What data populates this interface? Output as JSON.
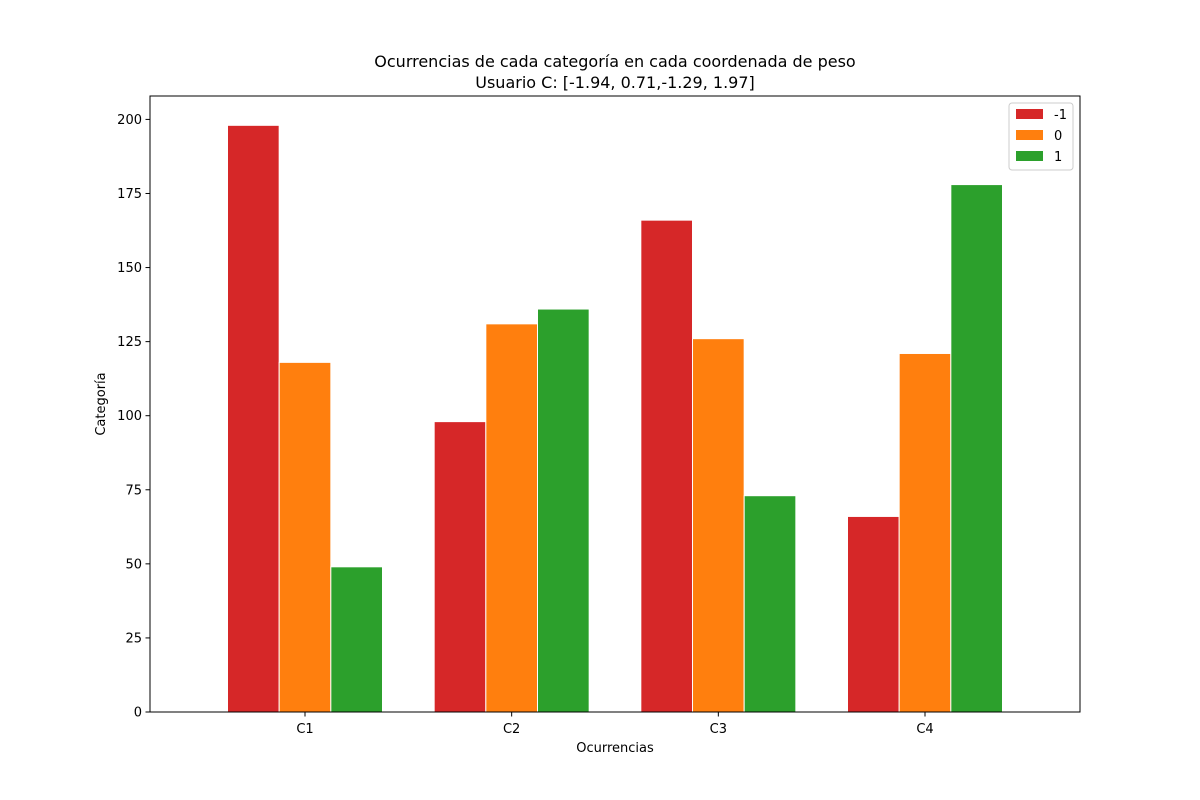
{
  "chart_data": {
    "type": "bar",
    "title": "Ocurrencias de cada categoría en cada coordenada de peso",
    "subtitle": "Usuario C: [-1.94, 0.71,-1.29, 1.97]",
    "xlabel": "Ocurrencias",
    "ylabel": "Categoría",
    "categories": [
      "C1",
      "C2",
      "C3",
      "C4"
    ],
    "series": [
      {
        "name": "-1",
        "color": "#d62728",
        "values": [
          198,
          98,
          166,
          66
        ]
      },
      {
        "name": "0",
        "color": "#ff7f0e",
        "values": [
          118,
          131,
          126,
          121
        ]
      },
      {
        "name": "1",
        "color": "#2ca02c",
        "values": [
          49,
          136,
          73,
          178
        ]
      }
    ],
    "ylim": [
      0,
      207.9
    ],
    "yticks": [
      0,
      25,
      50,
      75,
      100,
      125,
      150,
      175,
      200
    ],
    "grid": false,
    "legend_position": "top-right"
  }
}
